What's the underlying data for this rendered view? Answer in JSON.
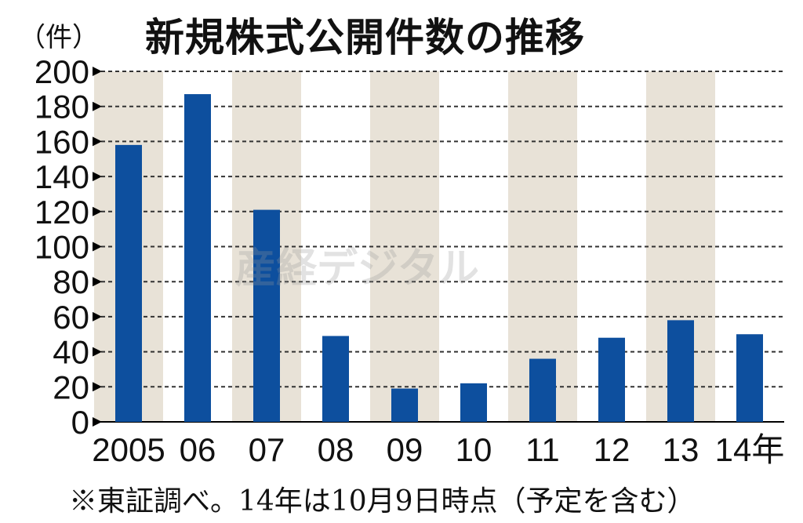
{
  "header": {
    "unit_label": "（件）",
    "title": "新規株式公開件数の推移"
  },
  "footnote": "※東証調べ。14年は10月9日時点（予定を含む）",
  "watermark": "産経デジタル",
  "colors": {
    "bar": "#0d4f9e",
    "band": "#e8e2d7",
    "grid": "#333333"
  },
  "chart_data": {
    "type": "bar",
    "title": "新規株式公開件数の推移",
    "ylabel": "（件）",
    "xlabel": "",
    "categories": [
      "2005",
      "06",
      "07",
      "08",
      "09",
      "10",
      "11",
      "12",
      "13",
      "14年"
    ],
    "values": [
      158,
      187,
      121,
      49,
      19,
      22,
      36,
      48,
      58,
      50
    ],
    "ylim": [
      0,
      200
    ],
    "yticks": [
      0,
      20,
      40,
      60,
      80,
      100,
      120,
      140,
      160,
      180,
      200
    ],
    "grid": true,
    "shaded_bands": [
      "2005",
      "07",
      "09",
      "11",
      "13"
    ]
  }
}
